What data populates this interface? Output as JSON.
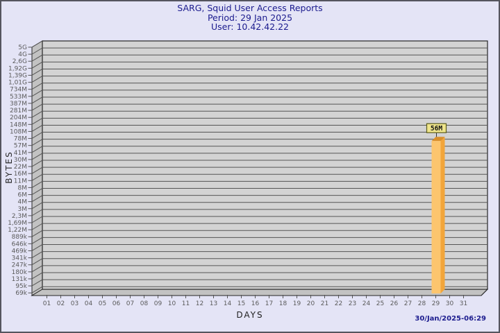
{
  "title": {
    "line1": "SARG, Squid User Access Reports",
    "line2": "Period: 29 Jan 2025",
    "line3": "User: 10.42.42.22"
  },
  "footer": {
    "generated_timestamp": "30/Jan/2025-06:29"
  },
  "chart_data": {
    "type": "bar",
    "title": "SARG, Squid User Access Reports",
    "subtitle_period": "Period: 29 Jan 2025",
    "subtitle_user": "User: 10.42.42.22",
    "xlabel": "DAYS",
    "ylabel": "BYTES",
    "x_tick_labels": [
      "01",
      "02",
      "03",
      "04",
      "05",
      "06",
      "07",
      "08",
      "09",
      "10",
      "11",
      "12",
      "13",
      "14",
      "15",
      "16",
      "17",
      "18",
      "19",
      "20",
      "21",
      "22",
      "23",
      "24",
      "25",
      "26",
      "27",
      "28",
      "29",
      "30",
      "31"
    ],
    "y_tick_labels": [
      "5G",
      "4G",
      "2,6G",
      "1,92G",
      "1,39G",
      "1,01G",
      "734M",
      "533M",
      "387M",
      "281M",
      "204M",
      "148M",
      "108M",
      "78M",
      "57M",
      "41M",
      "30M",
      "22M",
      "16M",
      "11M",
      "8M",
      "6M",
      "4M",
      "3M",
      "2,3M",
      "1,69M",
      "1,22M",
      "889k",
      "646k",
      "469k",
      "341k",
      "247k",
      "180k",
      "131k",
      "95k",
      "69k"
    ],
    "y_scale": "logarithmic",
    "grid": true,
    "legend": "none",
    "bars": [
      {
        "day": "29",
        "value_label": "56M",
        "value_bytes": 56000000
      }
    ],
    "colors": {
      "page_bg": "#e4e4f6",
      "title_text": "#1b1b8e",
      "plot_bg": "#d3d3d3",
      "wall_bg": "#c2c2c2",
      "grid_line": "#555555",
      "frame_line": "#252525",
      "tick_text": "#5a5a5a",
      "bar_front": "#fcc56e",
      "bar_side": "#f2a53a",
      "bar_top": "#d98f2b",
      "value_box_bg": "#efe58c",
      "value_box_border": "#5c5c1a",
      "value_box_text": "#111111"
    }
  }
}
